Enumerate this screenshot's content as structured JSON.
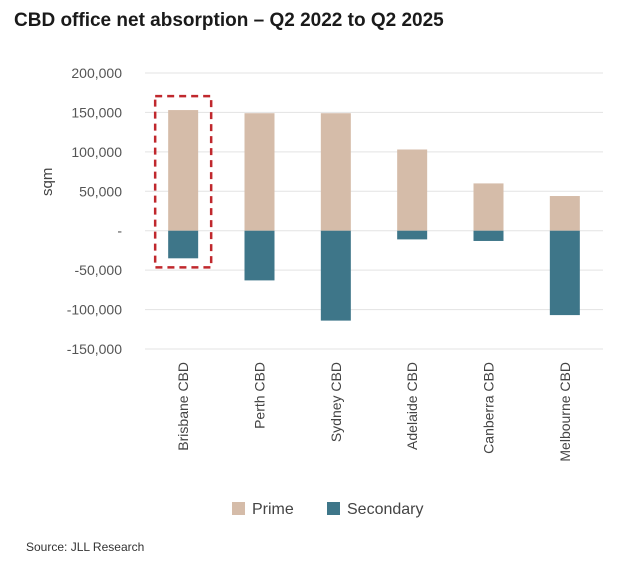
{
  "title": "CBD office net absorption – Q2 2022 to Q2 2025",
  "source": "Source: JLL Research",
  "chart_data": {
    "type": "bar",
    "stacked": true,
    "title": "CBD office net absorption – Q2 2022 to Q2 2025",
    "xlabel": "",
    "ylabel": "sqm",
    "ylim": [
      -150000,
      200000
    ],
    "yticks": [
      200000,
      150000,
      100000,
      50000,
      0,
      -50000,
      -100000,
      -150000
    ],
    "ytick_labels": [
      "200,000",
      "150,000",
      "100,000",
      "50,000",
      "-",
      "-50,000",
      "-100,000",
      "-150,000"
    ],
    "categories": [
      "Brisbane CBD",
      "Perth CBD",
      "Sydney CBD",
      "Adelaide CBD",
      "Canberra CBD",
      "Melbourne CBD"
    ],
    "series": [
      {
        "name": "Prime",
        "color": "#d5bca9",
        "values": [
          153000,
          149000,
          149000,
          103000,
          60000,
          44000
        ]
      },
      {
        "name": "Secondary",
        "color": "#3e7689",
        "values": [
          -35000,
          -63000,
          -114000,
          -11000,
          -13000,
          -107000
        ]
      }
    ],
    "grid": true,
    "legend": "bottom",
    "highlight": {
      "category": "Brisbane CBD",
      "style": "dashed-box",
      "color": "#c0282d"
    }
  }
}
